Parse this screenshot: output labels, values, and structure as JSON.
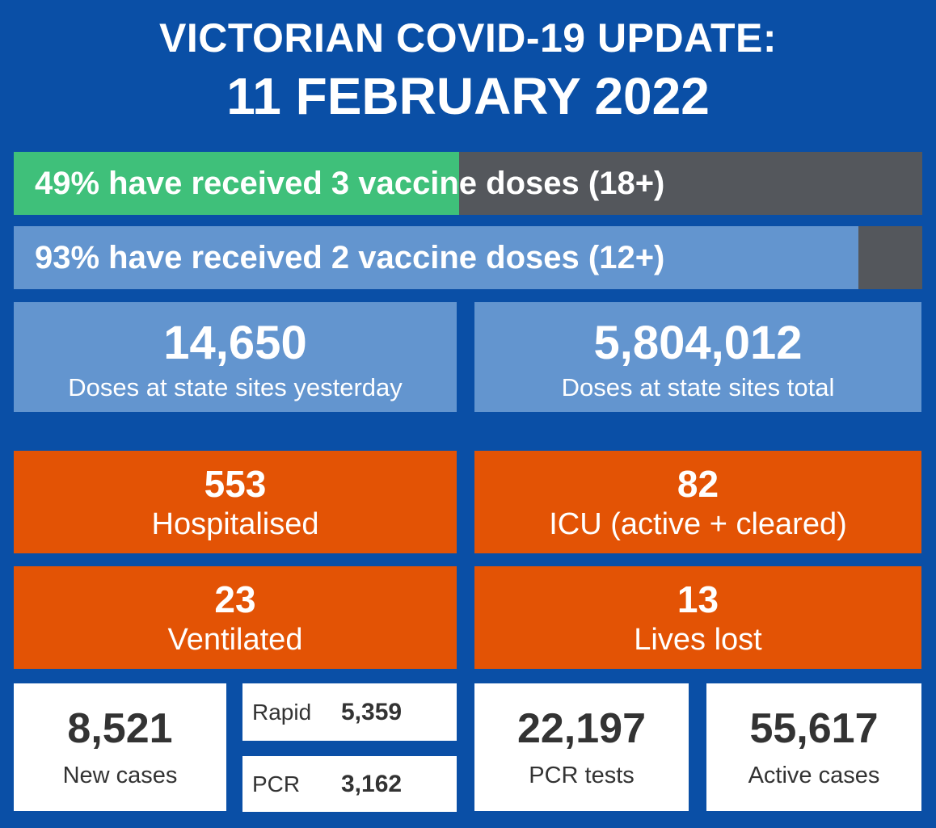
{
  "header": {
    "line1": "VICTORIAN COVID-19 UPDATE:",
    "line2": "11 FEBRUARY 2022"
  },
  "vaccination": [
    {
      "text": "49% have received 3 vaccine doses (18+)",
      "percent": 49,
      "fill_color": "#3fc07a"
    },
    {
      "text": "93% have received 2 vaccine doses (12+)",
      "percent": 93,
      "fill_color": "#6395cf"
    }
  ],
  "doses": {
    "yesterday": {
      "value": "14,650",
      "label": "Doses at state sites yesterday"
    },
    "total": {
      "value": "5,804,012",
      "label": "Doses at state sites total"
    }
  },
  "hospital": {
    "hospitalised": {
      "value": "553",
      "label": "Hospitalised"
    },
    "icu": {
      "value": "82",
      "label": "ICU (active + cleared)"
    },
    "ventilated": {
      "value": "23",
      "label": "Ventilated"
    },
    "lives_lost": {
      "value": "13",
      "label": "Lives lost"
    }
  },
  "cases": {
    "new_cases": {
      "value": "8,521",
      "label": "New cases"
    },
    "rapid": {
      "label": "Rapid",
      "value": "5,359"
    },
    "pcr": {
      "label": "PCR",
      "value": "3,162"
    },
    "pcr_tests": {
      "value": "22,197",
      "label": "PCR tests"
    },
    "active_cases": {
      "value": "55,617",
      "label": "Active cases"
    }
  },
  "colors": {
    "background": "#0a4fa6",
    "bar_track": "#54575c",
    "orange": "#e35305",
    "light_blue": "#6395cf",
    "green": "#3fc07a"
  }
}
